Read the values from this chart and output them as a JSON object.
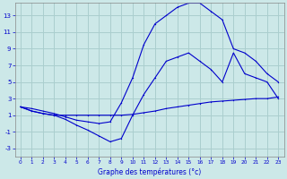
{
  "xlabel": "Graphe des températures (°c)",
  "background_color": "#cce8e8",
  "grid_color": "#aacece",
  "line_color": "#0000cc",
  "xlim": [
    -0.5,
    23.5
  ],
  "ylim": [
    -4,
    14.5
  ],
  "xticks": [
    0,
    1,
    2,
    3,
    4,
    5,
    6,
    7,
    8,
    9,
    10,
    11,
    12,
    13,
    14,
    15,
    16,
    17,
    18,
    19,
    20,
    21,
    22,
    23
  ],
  "yticks": [
    -3,
    -1,
    1,
    3,
    5,
    7,
    9,
    11,
    13
  ],
  "curve1_x": [
    0,
    1,
    2,
    3,
    4,
    5,
    6,
    7,
    8,
    9,
    10,
    11,
    12,
    13,
    14,
    15,
    16,
    17,
    18,
    19,
    20,
    21,
    22,
    23
  ],
  "curve1_y": [
    2.0,
    1.5,
    1.2,
    1.0,
    1.0,
    1.0,
    1.0,
    1.0,
    1.0,
    1.0,
    1.1,
    1.3,
    1.5,
    1.8,
    2.0,
    2.2,
    2.4,
    2.6,
    2.7,
    2.8,
    2.9,
    3.0,
    3.0,
    3.2
  ],
  "curve2_x": [
    0,
    1,
    2,
    3,
    4,
    5,
    6,
    7,
    8,
    9,
    10,
    11,
    12,
    13,
    14,
    15,
    16,
    17,
    18,
    19,
    20,
    21,
    22,
    23
  ],
  "curve2_y": [
    2.0,
    1.5,
    1.2,
    1.0,
    0.5,
    -0.2,
    -0.8,
    -1.5,
    -2.2,
    -1.8,
    1.0,
    3.5,
    5.5,
    7.5,
    8.0,
    8.5,
    7.5,
    6.5,
    5.0,
    8.5,
    6.0,
    5.5,
    5.0,
    3.0
  ],
  "curve3_x": [
    0,
    1,
    2,
    3,
    4,
    5,
    6,
    7,
    8,
    9,
    10,
    11,
    12,
    13,
    14,
    15,
    16,
    17,
    18,
    19,
    20,
    21,
    22,
    23
  ],
  "curve3_y": [
    2.0,
    1.8,
    1.5,
    1.2,
    0.8,
    0.4,
    0.2,
    0.0,
    0.2,
    2.5,
    5.5,
    9.5,
    12.0,
    13.0,
    14.0,
    14.5,
    14.5,
    13.5,
    12.5,
    9.0,
    8.5,
    7.5,
    6.0,
    5.0
  ]
}
